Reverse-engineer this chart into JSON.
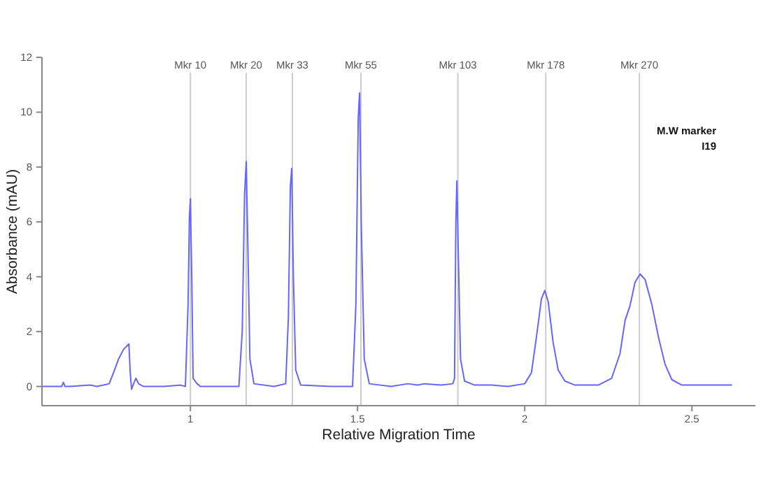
{
  "chart_data": {
    "type": "line",
    "xlabel": "Relative Migration Time",
    "ylabel": "Absorbance (mAU)",
    "xlim": [
      0.556,
      2.69
    ],
    "ylim": [
      -0.7,
      12
    ],
    "xticks": [
      1,
      1.5,
      2,
      2.5
    ],
    "yticks": [
      0,
      2,
      4,
      6,
      8,
      10,
      12
    ],
    "grid": false,
    "marker": "none",
    "line_style": "solid",
    "annotations": [
      "M.W marker",
      "I19"
    ],
    "ref_lines": [
      {
        "axis": "x",
        "value": 1.0,
        "label": "Mkr 10",
        "color": "#cccccc"
      },
      {
        "axis": "x",
        "value": 1.167,
        "label": "Mkr 20",
        "color": "#cccccc"
      },
      {
        "axis": "x",
        "value": 1.305,
        "label": "Mkr 33",
        "color": "#cccccc"
      },
      {
        "axis": "x",
        "value": 1.51,
        "label": "Mkr 55",
        "color": "#cccccc"
      },
      {
        "axis": "x",
        "value": 1.8,
        "label": "Mkr 103",
        "color": "#cccccc"
      },
      {
        "axis": "x",
        "value": 2.063,
        "label": "Mkr 178",
        "color": "#cccccc"
      },
      {
        "axis": "x",
        "value": 2.343,
        "label": "Mkr 270",
        "color": "#cccccc"
      }
    ],
    "series": [
      {
        "color": "#6666ff",
        "x": [
          0.556,
          0.6,
          0.615,
          0.62,
          0.625,
          0.64,
          0.7,
          0.72,
          0.74,
          0.757,
          0.77,
          0.785,
          0.8,
          0.816,
          0.82,
          0.824,
          0.83,
          0.837,
          0.845,
          0.86,
          0.92,
          0.97,
          0.985,
          0.993,
          0.997,
          1.0,
          1.004,
          1.008,
          1.02,
          1.03,
          1.1,
          1.145,
          1.155,
          1.162,
          1.167,
          1.172,
          1.178,
          1.19,
          1.25,
          1.285,
          1.293,
          1.299,
          1.303,
          1.308,
          1.315,
          1.33,
          1.42,
          1.485,
          1.495,
          1.502,
          1.506,
          1.511,
          1.52,
          1.535,
          1.6,
          1.65,
          1.68,
          1.7,
          1.75,
          1.785,
          1.79,
          1.794,
          1.797,
          1.801,
          1.808,
          1.82,
          1.85,
          1.9,
          1.95,
          2.0,
          2.02,
          2.035,
          2.05,
          2.06,
          2.07,
          2.085,
          2.1,
          2.12,
          2.15,
          2.22,
          2.26,
          2.285,
          2.3,
          2.315,
          2.33,
          2.345,
          2.36,
          2.38,
          2.4,
          2.42,
          2.44,
          2.47,
          2.55,
          2.62
        ],
        "values": [
          0,
          0,
          0,
          0.15,
          0,
          0,
          0.05,
          0,
          0.05,
          0.1,
          0.5,
          1.0,
          1.35,
          1.55,
          0.5,
          -0.1,
          0.1,
          0.3,
          0.1,
          0,
          0,
          0.05,
          0,
          3,
          6.2,
          6.85,
          4,
          0.3,
          0.1,
          0,
          0,
          0,
          2,
          7,
          8.2,
          5,
          1,
          0.1,
          0,
          0.1,
          2.5,
          7.3,
          7.95,
          4,
          0.6,
          0.05,
          0,
          0,
          3,
          9.8,
          10.7,
          6,
          1,
          0.1,
          0,
          0.1,
          0.05,
          0.1,
          0.05,
          0.1,
          0.3,
          6,
          7.5,
          5,
          1,
          0.2,
          0.05,
          0.05,
          0,
          0.1,
          0.5,
          1.8,
          3.2,
          3.5,
          3.1,
          1.6,
          0.6,
          0.2,
          0.05,
          0.05,
          0.3,
          1.2,
          2.4,
          2.95,
          3.8,
          4.1,
          3.9,
          3.0,
          1.8,
          0.8,
          0.25,
          0.05,
          0.05,
          0.05
        ]
      }
    ]
  }
}
